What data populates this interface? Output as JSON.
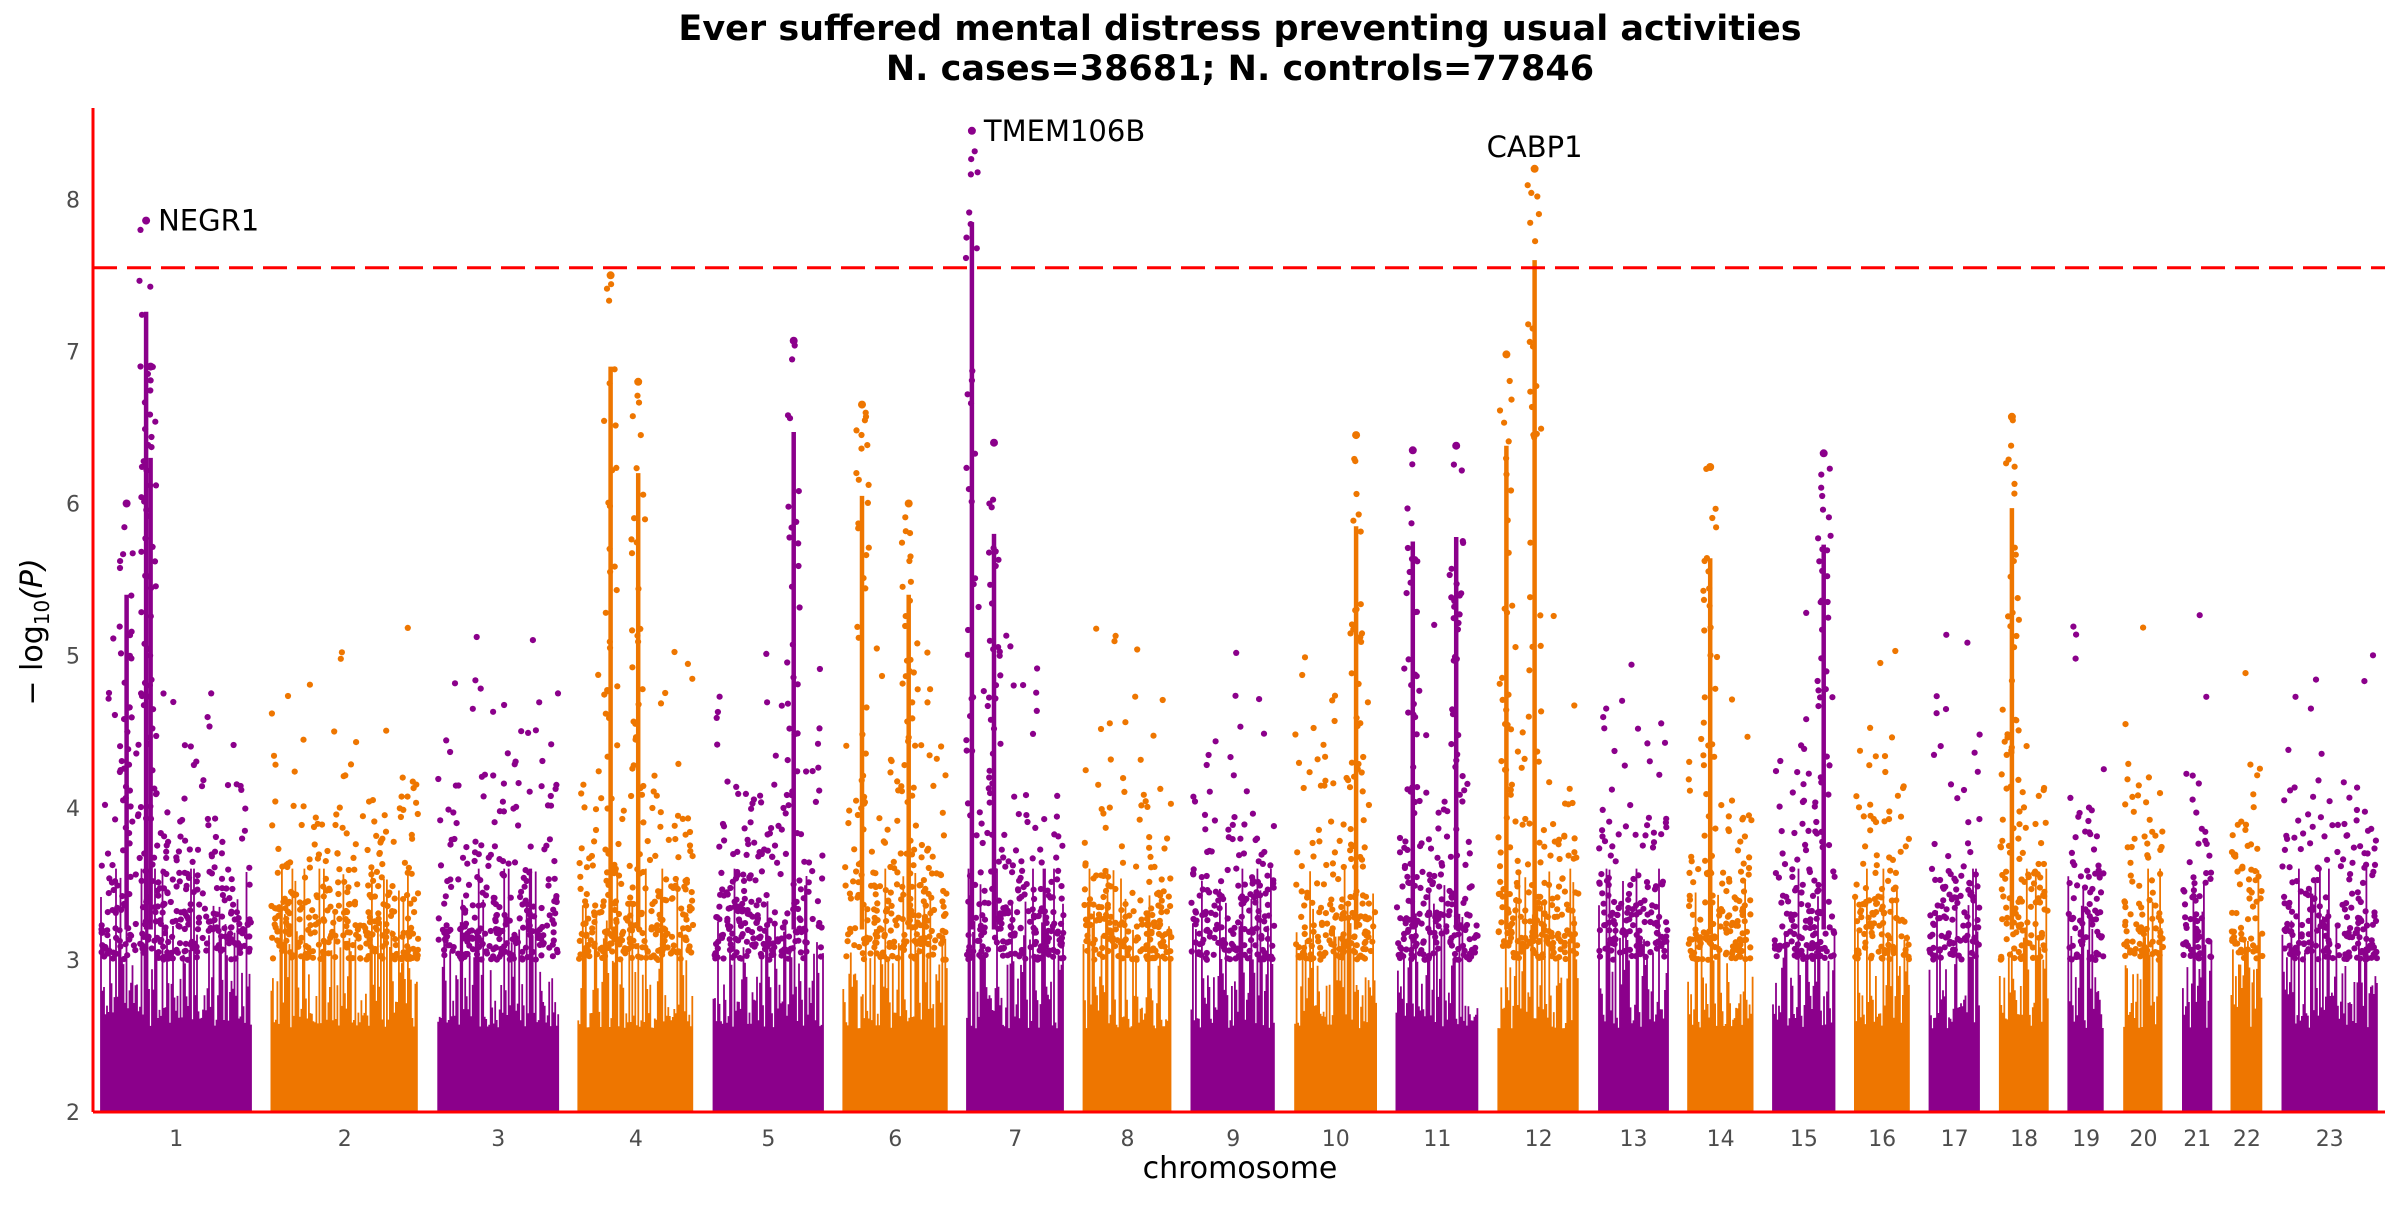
{
  "chart_data": {
    "type": "scatter",
    "subtype": "manhattan",
    "title": "Ever suffered mental distress preventing usual activities",
    "subtitle": "N. cases=38681; N. controls=77846",
    "xlabel": "chromosome",
    "ylabel_main": "− log",
    "ylabel_sub": "10",
    "ylabel_arg": "(P)",
    "ylim": [
      2,
      8.6
    ],
    "y_ticks": [
      2,
      3,
      4,
      5,
      6,
      7,
      8
    ],
    "significance_threshold": 7.55,
    "threshold_color": "#ff0000",
    "axis_color": "#ff0000",
    "colors": [
      "#8b008b",
      "#ee7600"
    ],
    "grid": false,
    "chromosomes": [
      {
        "label": "1",
        "length": 248
      },
      {
        "label": "2",
        "length": 242
      },
      {
        "label": "3",
        "length": 198
      },
      {
        "label": "4",
        "length": 190
      },
      {
        "label": "5",
        "length": 181
      },
      {
        "label": "6",
        "length": 171
      },
      {
        "label": "7",
        "length": 159
      },
      {
        "label": "8",
        "length": 145
      },
      {
        "label": "9",
        "length": 138
      },
      {
        "label": "10",
        "length": 134
      },
      {
        "label": "11",
        "length": 135
      },
      {
        "label": "12",
        "length": 133
      },
      {
        "label": "13",
        "length": 114
      },
      {
        "label": "14",
        "length": 107
      },
      {
        "label": "15",
        "length": 102
      },
      {
        "label": "16",
        "length": 90
      },
      {
        "label": "17",
        "length": 83
      },
      {
        "label": "18",
        "length": 80
      },
      {
        "label": "19",
        "length": 59
      },
      {
        "label": "20",
        "length": 64
      },
      {
        "label": "21",
        "length": 47
      },
      {
        "label": "22",
        "length": 51
      },
      {
        "label": "23",
        "length": 156
      }
    ],
    "peaks": [
      {
        "chr": "1",
        "pos": 0.3,
        "y": 7.86
      },
      {
        "chr": "1",
        "pos": 0.17,
        "y": 6.0
      },
      {
        "chr": "1",
        "pos": 0.33,
        "y": 6.9
      },
      {
        "chr": "4",
        "pos": 0.28,
        "y": 7.5
      },
      {
        "chr": "4",
        "pos": 0.52,
        "y": 6.8
      },
      {
        "chr": "5",
        "pos": 0.73,
        "y": 7.07
      },
      {
        "chr": "6",
        "pos": 0.18,
        "y": 6.65
      },
      {
        "chr": "6",
        "pos": 0.63,
        "y": 6.0
      },
      {
        "chr": "7",
        "pos": 0.05,
        "y": 8.45
      },
      {
        "chr": "7",
        "pos": 0.28,
        "y": 6.4
      },
      {
        "chr": "10",
        "pos": 0.75,
        "y": 6.45
      },
      {
        "chr": "11",
        "pos": 0.2,
        "y": 6.35
      },
      {
        "chr": "11",
        "pos": 0.73,
        "y": 6.38
      },
      {
        "chr": "12",
        "pos": 0.1,
        "y": 6.98
      },
      {
        "chr": "12",
        "pos": 0.45,
        "y": 8.2
      },
      {
        "chr": "14",
        "pos": 0.34,
        "y": 6.24
      },
      {
        "chr": "15",
        "pos": 0.82,
        "y": 6.33
      },
      {
        "chr": "18",
        "pos": 0.25,
        "y": 6.57
      }
    ],
    "annotations": [
      {
        "gene": "NEGR1",
        "chr": "1",
        "pos": 0.3,
        "y": 7.86,
        "label_side": "right"
      },
      {
        "gene": "TMEM106B",
        "chr": "7",
        "pos": 0.05,
        "y": 8.45,
        "label_side": "right"
      },
      {
        "gene": "CABP1",
        "chr": "12",
        "pos": 0.45,
        "y": 8.2,
        "label_side": "above"
      }
    ]
  }
}
